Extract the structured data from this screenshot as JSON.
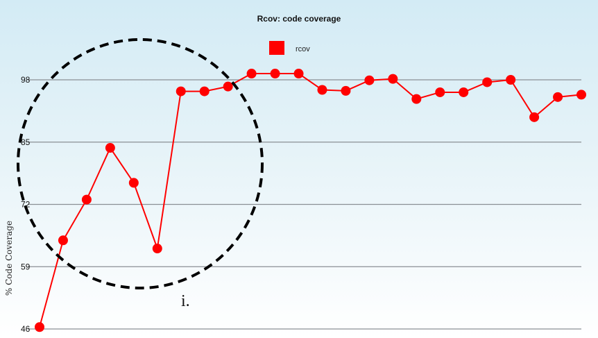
{
  "chart_data": {
    "type": "line",
    "title": "Rcov: code coverage",
    "xlabel": "",
    "ylabel": "% Code Coverage",
    "ylim": [
      46,
      98
    ],
    "yticks": [
      46,
      59,
      72,
      85,
      98
    ],
    "grid": true,
    "legend_placement": "top-center",
    "series": [
      {
        "name": "rcov",
        "color": "#ff0000",
        "values": [
          46.4,
          64.5,
          73.0,
          83.8,
          76.5,
          62.8,
          95.6,
          95.6,
          96.6,
          99.3,
          99.3,
          99.3,
          95.9,
          95.7,
          97.9,
          98.2,
          94.0,
          95.4,
          95.4,
          97.5,
          98.0,
          90.2,
          94.4,
          94.9
        ]
      }
    ],
    "annotation": {
      "label": "i.",
      "shape": "dashed-circle"
    }
  }
}
